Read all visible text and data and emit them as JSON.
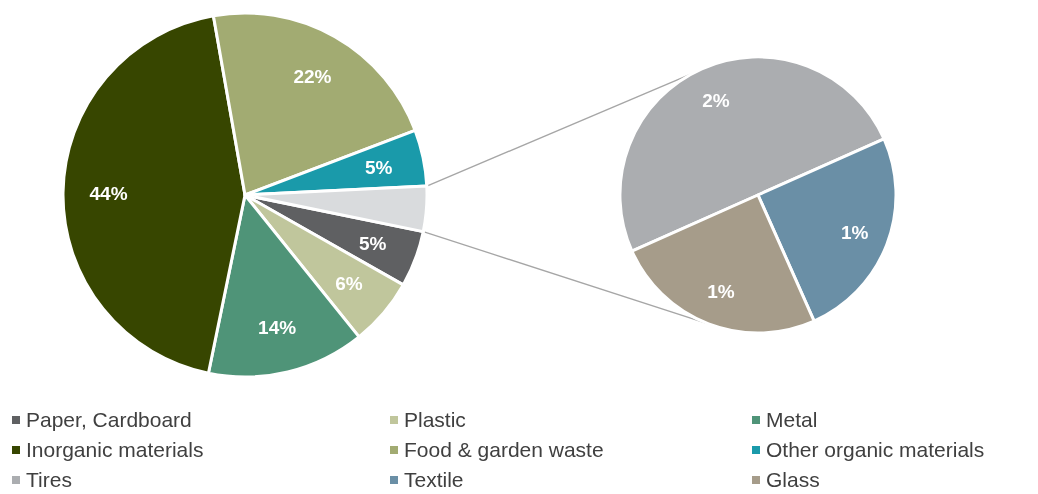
{
  "chart_data": [
    {
      "type": "pie",
      "categories": [
        "Paper, Cardboard",
        "Plastic",
        "Metal",
        "Inorganic materials",
        "Food & garden waste",
        "Other organic materials",
        null
      ],
      "values": [
        5,
        6,
        14,
        44,
        22,
        5,
        4
      ],
      "colors": [
        "#5f6062",
        "#c0c69c",
        "#4f9478",
        "#374600",
        "#a2ab72",
        "#1a9aaa",
        "#d9dbdd"
      ],
      "value_labels": [
        "5%",
        "6%",
        "14%",
        "44%",
        "22%",
        "5%",
        null
      ],
      "legend": "bottom"
    },
    {
      "type": "pie",
      "categories": [
        "Tires",
        "Textile",
        "Glass"
      ],
      "values": [
        2,
        1,
        1
      ],
      "colors": [
        "#abadb0",
        "#6a8fa6",
        "#a69c8a"
      ],
      "value_labels": [
        "2%",
        "1%",
        "1%"
      ],
      "legend": "bottom"
    }
  ]
}
